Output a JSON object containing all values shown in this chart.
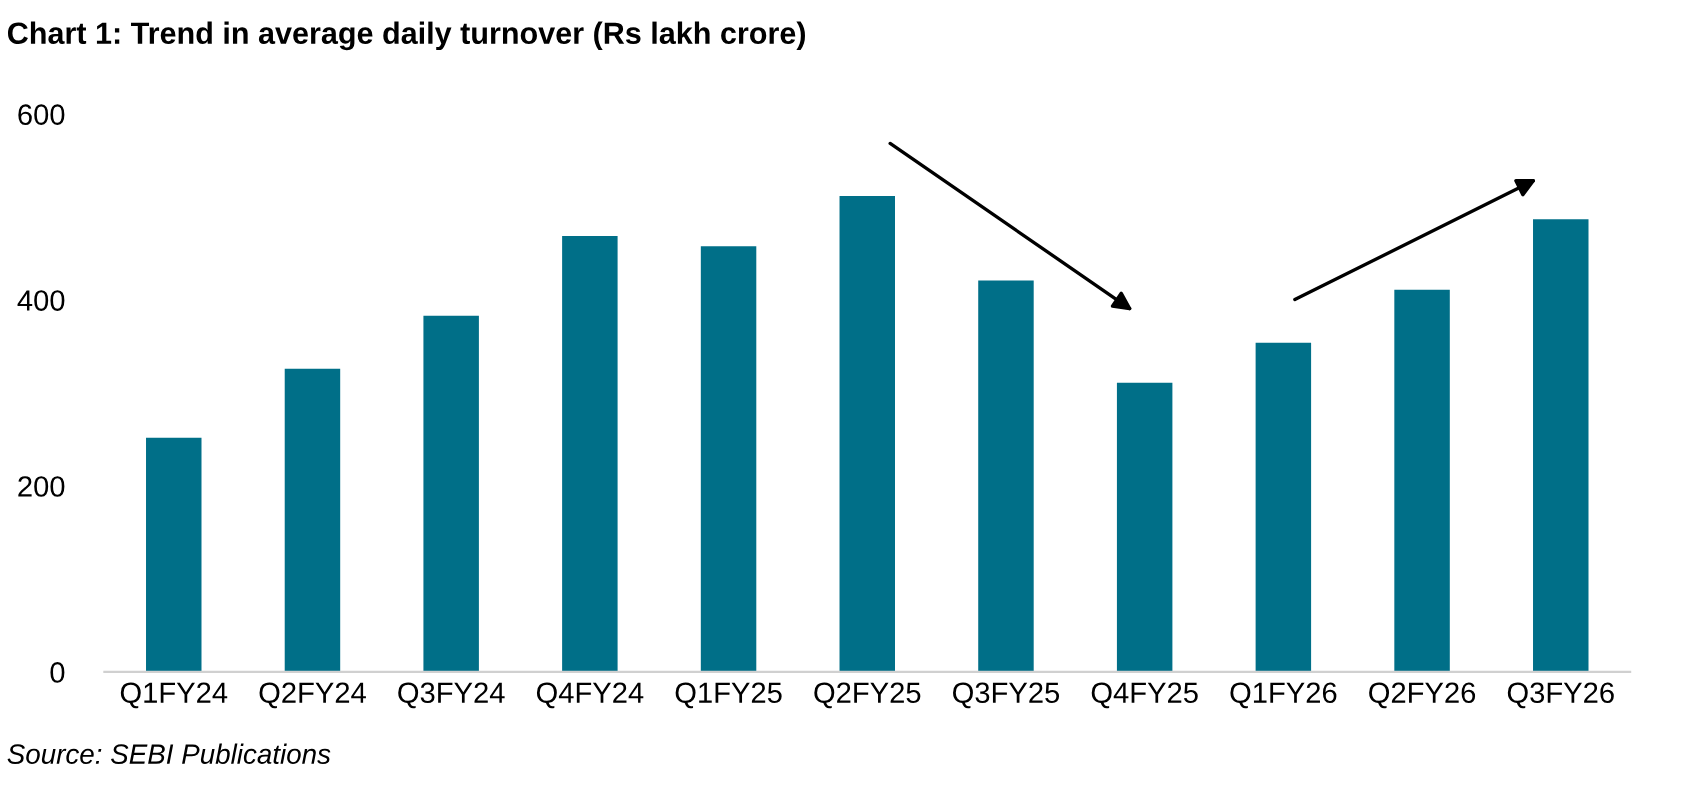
{
  "chart_data": {
    "type": "bar",
    "title": "Chart 1: Trend in average daily turnover (Rs lakh crore)",
    "categories": [
      "Q1FY24",
      "Q2FY24",
      "Q3FY24",
      "Q4FY24",
      "Q1FY25",
      "Q2FY25",
      "Q3FY25",
      "Q4FY25",
      "Q1FY26",
      "Q2FY26",
      "Q3FY26"
    ],
    "values": [
      252,
      326,
      383,
      469,
      458,
      512,
      421,
      311,
      354,
      411,
      487
    ],
    "color": "#006f88",
    "ylim": [
      0,
      600
    ],
    "yticks": [
      0,
      200,
      400,
      600
    ],
    "grid": false,
    "legend": false,
    "annotations": [
      "Source: SEBI Publications"
    ]
  }
}
